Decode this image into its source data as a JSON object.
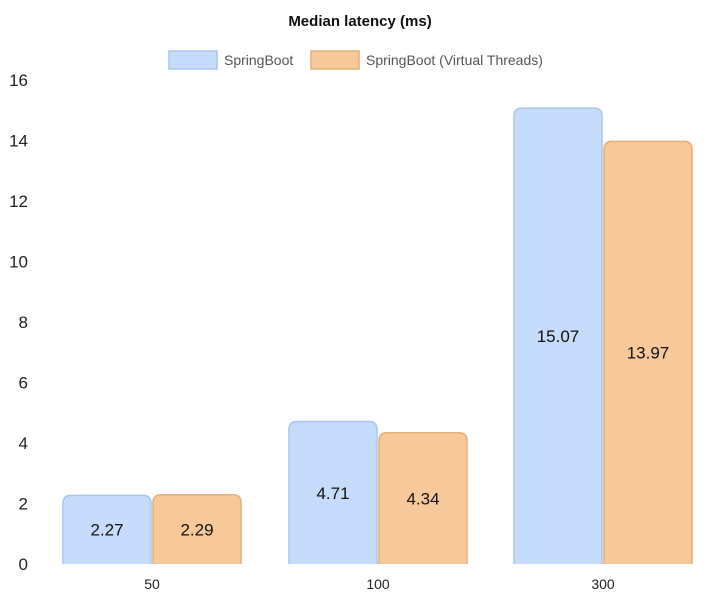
{
  "chart_data": {
    "type": "bar",
    "title": "Median latency (ms)",
    "xlabel": "",
    "ylabel": "",
    "categories": [
      "50",
      "100",
      "300"
    ],
    "ylim": [
      0,
      16
    ],
    "yticks": [
      0,
      2,
      4,
      6,
      8,
      10,
      12,
      14,
      16
    ],
    "series": [
      {
        "name": "SpringBoot",
        "values": [
          2.27,
          4.71,
          15.07
        ],
        "color": "#c5dcfb",
        "stroke": "#a9c6f0"
      },
      {
        "name": "SpringBoot (Virtual Threads)",
        "values": [
          2.29,
          4.34,
          13.97
        ],
        "color": "#f7c99a",
        "stroke": "#e3ae78"
      }
    ],
    "data_labels": [
      [
        "2.27",
        "4.71",
        "15.07"
      ],
      [
        "2.29",
        "4.34",
        "13.97"
      ]
    ],
    "legend_position": "top-center",
    "grid": false
  }
}
